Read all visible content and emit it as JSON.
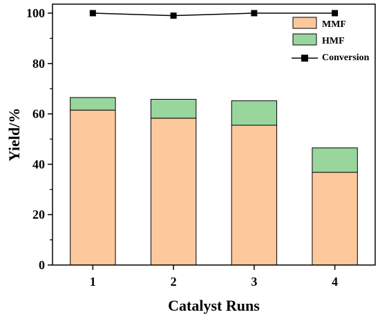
{
  "chart_data": {
    "type": "bar",
    "stacked": true,
    "categories": [
      "1",
      "2",
      "3",
      "4"
    ],
    "series": [
      {
        "name": "MMF",
        "type": "bar",
        "values": [
          61.5,
          58.3,
          55.5,
          36.8
        ],
        "color": "#fcc89c"
      },
      {
        "name": "HMF",
        "type": "bar",
        "values": [
          5.0,
          7.5,
          9.7,
          9.7
        ],
        "color": "#98d69e"
      },
      {
        "name": "Conversion",
        "type": "line",
        "values": [
          100,
          99,
          100,
          100
        ],
        "color": "#000000"
      }
    ],
    "xlabel": "Catalyst Runs",
    "ylabel": "Yield/%",
    "ylim": [
      0,
      100
    ],
    "yticks": [
      0,
      20,
      40,
      60,
      80,
      100
    ],
    "grid": false,
    "legend_position": "top-right"
  }
}
